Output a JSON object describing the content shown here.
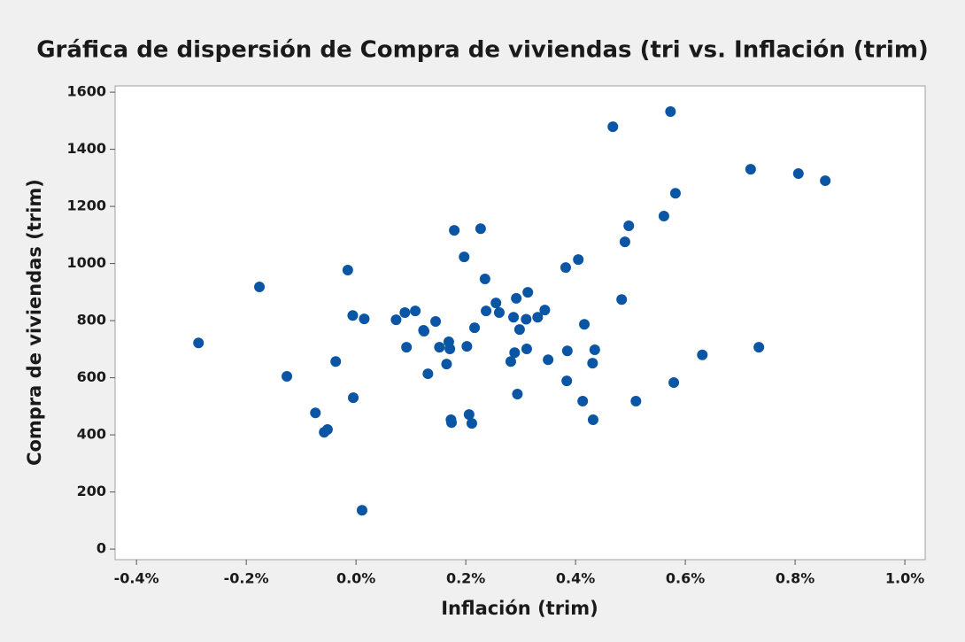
{
  "chart_data": {
    "type": "scatter",
    "title": "Gráfica de dispersión de Compra de viviendas (tri vs. Inflación (trim)",
    "xlabel": "Inflación (trim)",
    "ylabel": "Compra de viviendas (trim)",
    "color": "#0a56a5",
    "xlim": [
      -0.439,
      1.037
    ],
    "ylim": [
      -37,
      1622
    ],
    "xticks": [
      {
        "value": -0.4,
        "label": "-0.4%"
      },
      {
        "value": -0.2,
        "label": "-0.2%"
      },
      {
        "value": 0.0,
        "label": "0.0%"
      },
      {
        "value": 0.2,
        "label": "0.2%"
      },
      {
        "value": 0.4,
        "label": "0.4%"
      },
      {
        "value": 0.6,
        "label": "0.6%"
      },
      {
        "value": 0.8,
        "label": "0.8%"
      },
      {
        "value": 1.0,
        "label": "1.0%"
      }
    ],
    "yticks": [
      0,
      200,
      400,
      600,
      800,
      1000,
      1200,
      1400,
      1600
    ],
    "x": [
      -0.287,
      -0.176,
      -0.126,
      -0.074,
      -0.058,
      -0.052,
      -0.037,
      -0.005,
      -0.015,
      -0.006,
      0.015,
      0.011,
      0.073,
      0.089,
      0.092,
      0.108,
      0.123,
      0.124,
      0.131,
      0.145,
      0.152,
      0.165,
      0.169,
      0.171,
      0.173,
      0.174,
      0.179,
      0.197,
      0.202,
      0.206,
      0.211,
      0.216,
      0.227,
      0.235,
      0.237,
      0.255,
      0.261,
      0.282,
      0.287,
      0.289,
      0.292,
      0.294,
      0.298,
      0.31,
      0.313,
      0.311,
      0.331,
      0.344,
      0.35,
      0.382,
      0.385,
      0.384,
      0.405,
      0.413,
      0.416,
      0.431,
      0.432,
      0.435,
      0.468,
      0.484,
      0.49,
      0.497,
      0.51,
      0.561,
      0.579,
      0.582,
      0.573,
      0.631,
      0.719,
      0.734,
      0.806,
      0.855
    ],
    "y": [
      722,
      918,
      605,
      477,
      409,
      419,
      657,
      530,
      977,
      818,
      806,
      136,
      803,
      828,
      707,
      834,
      766,
      763,
      614,
      797,
      707,
      648,
      726,
      701,
      453,
      443,
      1116,
      1023,
      710,
      471,
      440,
      775,
      1122,
      946,
      834,
      862,
      828,
      657,
      812,
      688,
      878,
      543,
      769,
      805,
      899,
      701,
      812,
      837,
      663,
      986,
      694,
      589,
      1014,
      518,
      787,
      651,
      453,
      698,
      1479,
      874,
      1076,
      1132,
      518,
      1166,
      583,
      1246,
      1532,
      680,
      1330,
      707,
      1315,
      1290
    ]
  }
}
